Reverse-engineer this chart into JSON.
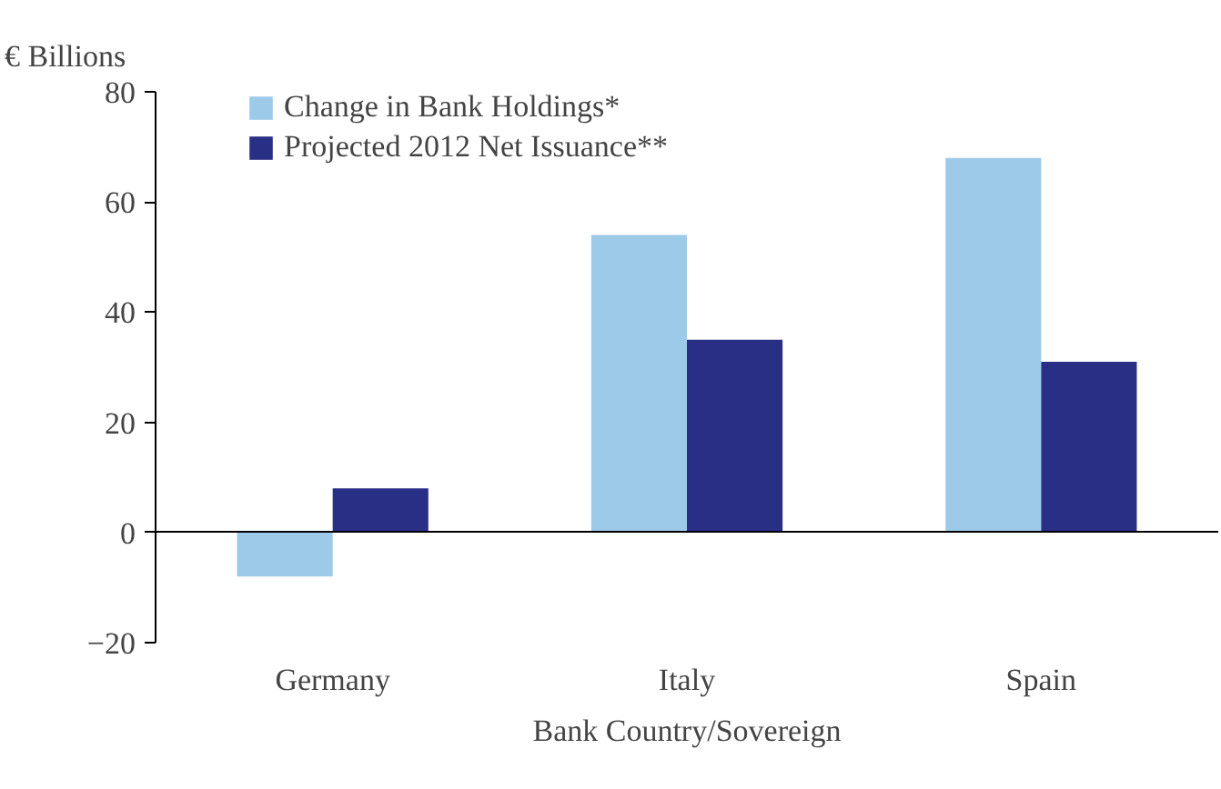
{
  "chart_data": {
    "type": "bar",
    "ylabel": "€ Billions",
    "xlabel": "Bank Country/Sovereign",
    "categories": [
      "Germany",
      "Italy",
      "Spain"
    ],
    "series": [
      {
        "name": "Change in Bank Holdings*",
        "color": "#9ecae9",
        "values": [
          -8,
          54,
          68
        ]
      },
      {
        "name": "Projected 2012 Net Issuance**",
        "color": "#2a2f86",
        "values": [
          8,
          35,
          31
        ]
      }
    ],
    "ylim": [
      -20,
      80
    ],
    "yticks": [
      -20,
      0,
      20,
      40,
      60,
      80
    ],
    "legend": "top left"
  }
}
